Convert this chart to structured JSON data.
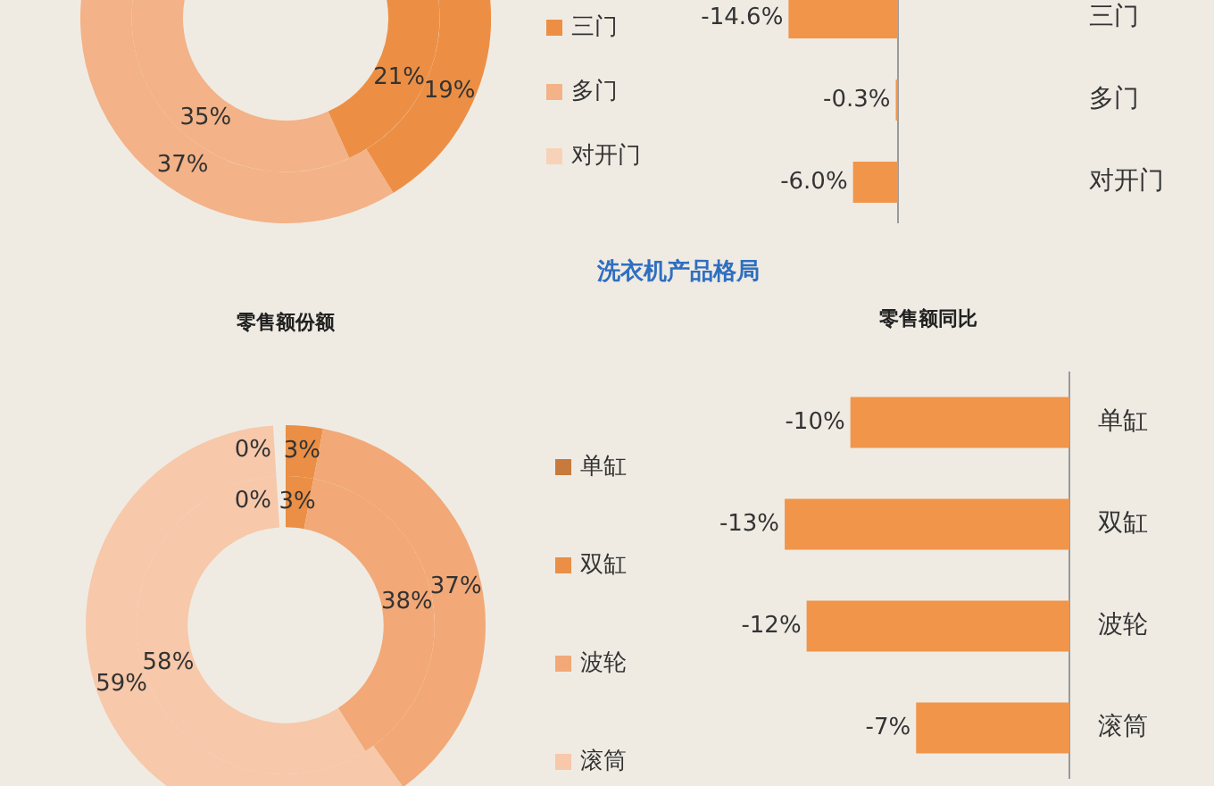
{
  "chart_data": [
    {
      "type": "donut",
      "categories": [
        "三门",
        "多门",
        "对开门"
      ],
      "colors": [
        "#ec8f45",
        "#f3b287",
        "#f8d2b8"
      ],
      "legend": "right",
      "series": [
        {
          "values": [
            19,
            37,
            null
          ],
          "value_labels": [
            "19%",
            "37%",
            null
          ]
        },
        {
          "values": [
            21,
            35,
            null
          ],
          "value_labels": [
            "21%",
            "35%",
            null
          ]
        }
      ]
    },
    {
      "type": "bar",
      "orientation": "horizontal",
      "categories": [
        "三门",
        "多门",
        "对开门"
      ],
      "values": [
        -14.6,
        -0.3,
        -6.0
      ],
      "value_labels": [
        "-14.6%",
        "-0.3%",
        "-6.0%"
      ],
      "color": "#f0954a",
      "tick_labels": "y"
    },
    {
      "type": "other",
      "title": "洗衣机产品格局"
    },
    {
      "type": "donut",
      "title": "零售额份额",
      "categories": [
        "单缸",
        "双缸",
        "波轮",
        "滚筒"
      ],
      "colors": [
        "#c87a3c",
        "#ea8f45",
        "#f2a977",
        "#f7c8aa"
      ],
      "legend": "right",
      "series": [
        {
          "values": [
            0,
            3,
            37,
            59
          ],
          "value_labels": [
            "0%",
            "3%",
            "37%",
            "59%"
          ]
        },
        {
          "values": [
            0,
            3,
            38,
            58
          ],
          "value_labels": [
            "0%",
            "3%",
            "38%",
            "58%"
          ]
        }
      ]
    },
    {
      "type": "bar",
      "title": "零售额同比",
      "orientation": "horizontal",
      "categories": [
        "单缸",
        "双缸",
        "波轮",
        "滚筒"
      ],
      "values": [
        -10,
        -13,
        -12,
        -7
      ],
      "value_labels": [
        "-10%",
        "-13%",
        "-12%",
        "-7%"
      ],
      "color": "#f0954a",
      "tick_labels": "y"
    }
  ]
}
